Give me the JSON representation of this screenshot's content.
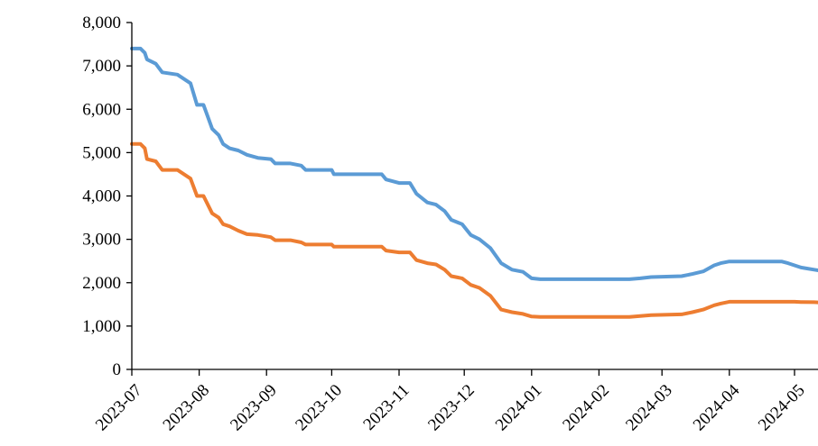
{
  "chart_data": {
    "type": "line",
    "title": "",
    "xlabel": "",
    "ylabel": "",
    "ylim": [
      0,
      8000
    ],
    "y_ticks": [
      "0",
      "1,000",
      "2,000",
      "3,000",
      "4,000",
      "5,000",
      "6,000",
      "7,000",
      "8,000"
    ],
    "x_ticks": [
      "2023-07",
      "2023-08",
      "2023-09",
      "2023-10",
      "2023-11",
      "2023-12",
      "2024-01",
      "2024-02",
      "2024-03",
      "2024-04",
      "2024-05"
    ],
    "grid": false,
    "legend": "none",
    "series": [
      {
        "color": "#5b9bd5",
        "points": [
          [
            "2023-07-01",
            7400
          ],
          [
            "2023-07-05",
            7400
          ],
          [
            "2023-07-07",
            7300
          ],
          [
            "2023-07-08",
            7150
          ],
          [
            "2023-07-12",
            7050
          ],
          [
            "2023-07-15",
            6850
          ],
          [
            "2023-07-22",
            6800
          ],
          [
            "2023-07-28",
            6600
          ],
          [
            "2023-07-31",
            6100
          ],
          [
            "2023-08-03",
            6100
          ],
          [
            "2023-08-07",
            5550
          ],
          [
            "2023-08-10",
            5400
          ],
          [
            "2023-08-12",
            5200
          ],
          [
            "2023-08-15",
            5100
          ],
          [
            "2023-08-19",
            5050
          ],
          [
            "2023-08-23",
            4950
          ],
          [
            "2023-08-28",
            4880
          ],
          [
            "2023-09-03",
            4850
          ],
          [
            "2023-09-05",
            4750
          ],
          [
            "2023-09-12",
            4750
          ],
          [
            "2023-09-17",
            4700
          ],
          [
            "2023-09-19",
            4600
          ],
          [
            "2023-10-01",
            4600
          ],
          [
            "2023-10-02",
            4500
          ],
          [
            "2023-10-24",
            4500
          ],
          [
            "2023-10-26",
            4380
          ],
          [
            "2023-11-01",
            4300
          ],
          [
            "2023-11-06",
            4300
          ],
          [
            "2023-11-09",
            4050
          ],
          [
            "2023-11-14",
            3850
          ],
          [
            "2023-11-18",
            3800
          ],
          [
            "2023-11-22",
            3650
          ],
          [
            "2023-11-25",
            3450
          ],
          [
            "2023-11-30",
            3350
          ],
          [
            "2023-12-04",
            3100
          ],
          [
            "2023-12-08",
            3000
          ],
          [
            "2023-12-13",
            2800
          ],
          [
            "2023-12-18",
            2450
          ],
          [
            "2023-12-23",
            2300
          ],
          [
            "2023-12-28",
            2250
          ],
          [
            "2024-01-01",
            2100
          ],
          [
            "2024-01-05",
            2080
          ],
          [
            "2024-02-15",
            2080
          ],
          [
            "2024-02-20",
            2100
          ],
          [
            "2024-02-25",
            2130
          ],
          [
            "2024-03-10",
            2150
          ],
          [
            "2024-03-15",
            2200
          ],
          [
            "2024-03-20",
            2260
          ],
          [
            "2024-03-25",
            2400
          ],
          [
            "2024-03-28",
            2450
          ],
          [
            "2024-04-01",
            2490
          ],
          [
            "2024-04-25",
            2490
          ],
          [
            "2024-04-28",
            2450
          ],
          [
            "2024-05-01",
            2400
          ],
          [
            "2024-05-04",
            2350
          ],
          [
            "2024-05-10",
            2300
          ],
          [
            "2024-05-15",
            2260
          ],
          [
            "2024-05-18",
            2250
          ]
        ]
      },
      {
        "color": "#ed7d31",
        "points": [
          [
            "2023-07-01",
            5200
          ],
          [
            "2023-07-05",
            5200
          ],
          [
            "2023-07-07",
            5100
          ],
          [
            "2023-07-08",
            4850
          ],
          [
            "2023-07-12",
            4800
          ],
          [
            "2023-07-15",
            4600
          ],
          [
            "2023-07-22",
            4600
          ],
          [
            "2023-07-28",
            4400
          ],
          [
            "2023-07-31",
            4000
          ],
          [
            "2023-08-03",
            4000
          ],
          [
            "2023-08-07",
            3600
          ],
          [
            "2023-08-10",
            3500
          ],
          [
            "2023-08-12",
            3350
          ],
          [
            "2023-08-15",
            3300
          ],
          [
            "2023-08-19",
            3200
          ],
          [
            "2023-08-23",
            3120
          ],
          [
            "2023-08-28",
            3100
          ],
          [
            "2023-09-03",
            3050
          ],
          [
            "2023-09-05",
            2980
          ],
          [
            "2023-09-12",
            2980
          ],
          [
            "2023-09-17",
            2930
          ],
          [
            "2023-09-19",
            2880
          ],
          [
            "2023-10-01",
            2880
          ],
          [
            "2023-10-02",
            2830
          ],
          [
            "2023-10-24",
            2830
          ],
          [
            "2023-10-26",
            2740
          ],
          [
            "2023-11-01",
            2700
          ],
          [
            "2023-11-06",
            2700
          ],
          [
            "2023-11-09",
            2520
          ],
          [
            "2023-11-14",
            2450
          ],
          [
            "2023-11-18",
            2420
          ],
          [
            "2023-11-22",
            2300
          ],
          [
            "2023-11-25",
            2150
          ],
          [
            "2023-11-30",
            2100
          ],
          [
            "2023-12-04",
            1950
          ],
          [
            "2023-12-08",
            1880
          ],
          [
            "2023-12-13",
            1700
          ],
          [
            "2023-12-18",
            1380
          ],
          [
            "2023-12-23",
            1320
          ],
          [
            "2023-12-28",
            1280
          ],
          [
            "2024-01-01",
            1220
          ],
          [
            "2024-01-05",
            1210
          ],
          [
            "2024-02-15",
            1210
          ],
          [
            "2024-02-20",
            1230
          ],
          [
            "2024-02-25",
            1250
          ],
          [
            "2024-03-10",
            1270
          ],
          [
            "2024-03-15",
            1320
          ],
          [
            "2024-03-20",
            1380
          ],
          [
            "2024-03-25",
            1480
          ],
          [
            "2024-03-28",
            1520
          ],
          [
            "2024-04-01",
            1560
          ],
          [
            "2024-04-25",
            1560
          ],
          [
            "2024-04-28",
            1560
          ],
          [
            "2024-05-01",
            1560
          ],
          [
            "2024-05-04",
            1555
          ],
          [
            "2024-05-10",
            1550
          ],
          [
            "2024-05-15",
            1540
          ],
          [
            "2024-05-18",
            1540
          ]
        ]
      }
    ]
  }
}
